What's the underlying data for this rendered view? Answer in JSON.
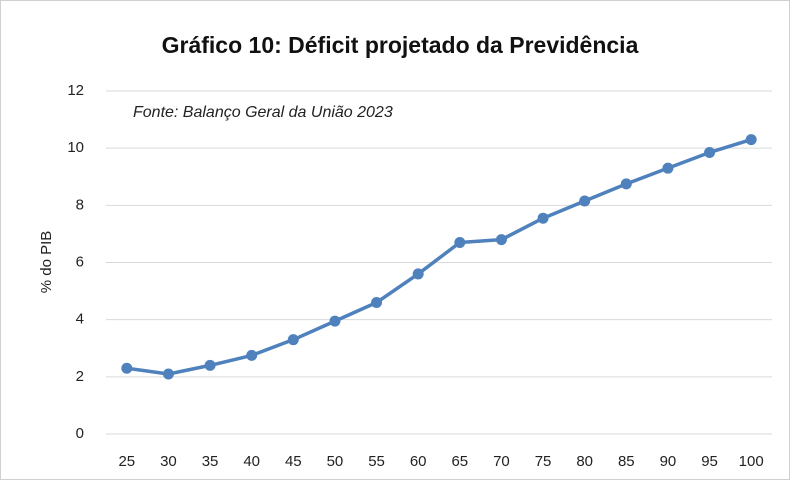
{
  "chart_data": {
    "type": "line",
    "title": "Gráfico 10: Déficit projetado da Previdência",
    "annotation": "Fonte: Balanço Geral da União 2023",
    "y_label": "% do PIB",
    "categories": [
      "25",
      "30",
      "35",
      "40",
      "45",
      "50",
      "55",
      "60",
      "65",
      "70",
      "75",
      "80",
      "85",
      "90",
      "95",
      "100"
    ],
    "values": [
      2.3,
      2.1,
      2.4,
      2.75,
      3.3,
      3.95,
      4.6,
      5.6,
      6.7,
      6.8,
      7.55,
      8.15,
      8.75,
      9.3,
      9.85,
      10.3
    ],
    "color": "#4f81bd",
    "ylim": [
      0,
      12
    ],
    "yticks": [
      0,
      2,
      4,
      6,
      8,
      10,
      12
    ],
    "grid": true
  }
}
